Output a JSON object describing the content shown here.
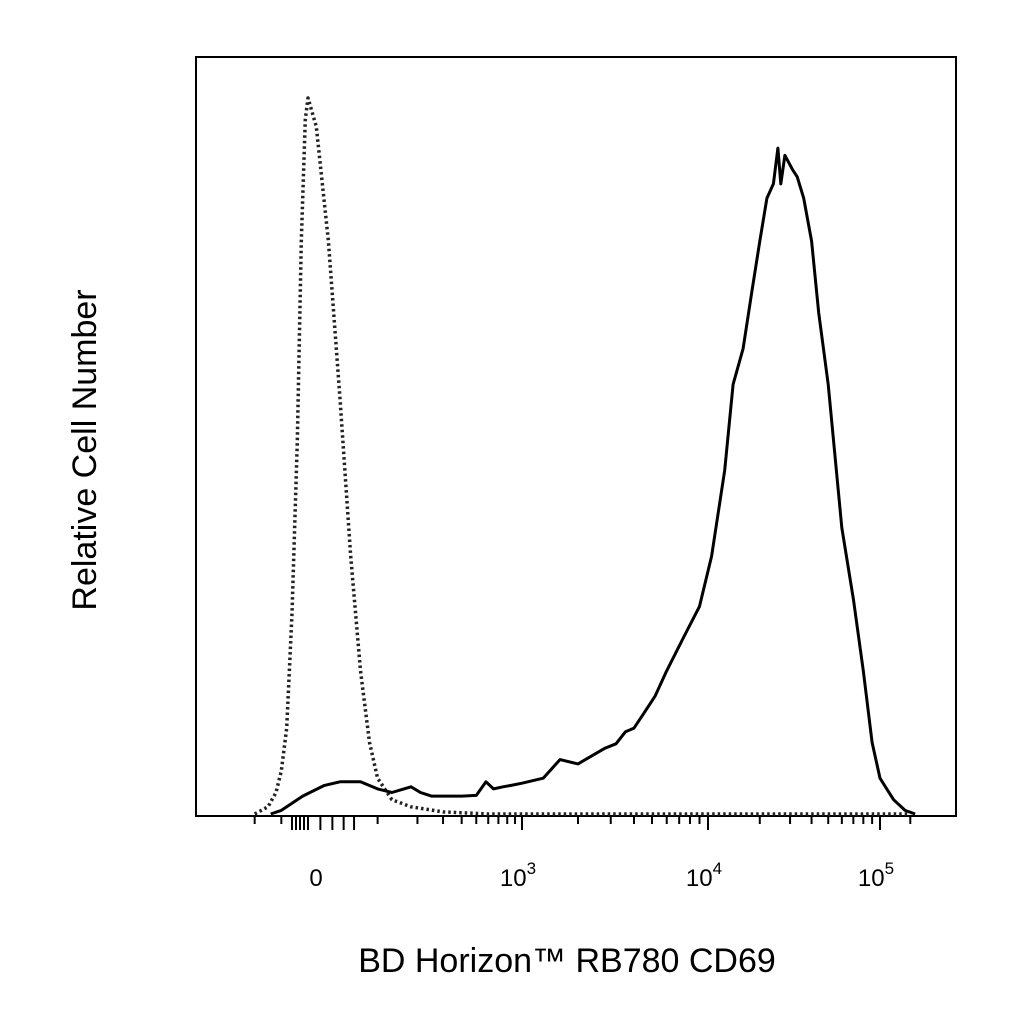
{
  "chart_data": {
    "type": "line",
    "xlabel": "BD Horizon™ RB780  CD69",
    "ylabel": "Relative Cell Number",
    "x_scale": "biexponential",
    "xlim": [
      -300,
      200000
    ],
    "ylim": [
      0,
      100
    ],
    "grid": false,
    "legend": "none",
    "x_tick_labels": [
      {
        "value": 0,
        "label": "0",
        "sup": ""
      },
      {
        "value": 1000,
        "label": "10",
        "sup": "3"
      },
      {
        "value": 10000,
        "label": "10",
        "sup": "4"
      },
      {
        "value": 100000,
        "label": "10",
        "sup": "5"
      }
    ],
    "series": [
      {
        "style": "dotted",
        "color": "#222222",
        "points": [
          [
            -200,
            0
          ],
          [
            -150,
            1
          ],
          [
            -120,
            3
          ],
          [
            -100,
            6
          ],
          [
            -80,
            12
          ],
          [
            -60,
            28
          ],
          [
            -40,
            52
          ],
          [
            -25,
            80
          ],
          [
            -10,
            97
          ],
          [
            0,
            100
          ],
          [
            10,
            96
          ],
          [
            25,
            80
          ],
          [
            40,
            58
          ],
          [
            55,
            36
          ],
          [
            70,
            20
          ],
          [
            85,
            10
          ],
          [
            100,
            5
          ],
          [
            130,
            2
          ],
          [
            180,
            1
          ],
          [
            300,
            0.3
          ],
          [
            600,
            0
          ],
          [
            1000,
            0
          ],
          [
            10000,
            0
          ],
          [
            100000,
            0
          ],
          [
            150000,
            0
          ]
        ]
      },
      {
        "style": "solid",
        "color": "#000000",
        "points": [
          [
            -140,
            0
          ],
          [
            -100,
            0.5
          ],
          [
            -60,
            1.5
          ],
          [
            -20,
            2.5
          ],
          [
            20,
            4
          ],
          [
            40,
            4.5
          ],
          [
            70,
            4.5
          ],
          [
            100,
            3.5
          ],
          [
            130,
            3
          ],
          [
            160,
            3.5
          ],
          [
            180,
            3.8
          ],
          [
            210,
            3
          ],
          [
            250,
            2.5
          ],
          [
            300,
            2.5
          ],
          [
            400,
            2.5
          ],
          [
            500,
            2.6
          ],
          [
            580,
            4.5
          ],
          [
            650,
            3.5
          ],
          [
            750,
            3.8
          ],
          [
            850,
            4
          ],
          [
            1000,
            4.3
          ],
          [
            1300,
            5
          ],
          [
            1600,
            7.6
          ],
          [
            2000,
            7
          ],
          [
            2400,
            8.2
          ],
          [
            2800,
            9.2
          ],
          [
            3200,
            9.8
          ],
          [
            3600,
            11.5
          ],
          [
            4000,
            12
          ],
          [
            4500,
            14
          ],
          [
            5200,
            16.5
          ],
          [
            6000,
            20
          ],
          [
            7500,
            25
          ],
          [
            9000,
            29
          ],
          [
            10500,
            36
          ],
          [
            12500,
            48
          ],
          [
            14000,
            60
          ],
          [
            16000,
            65
          ],
          [
            18000,
            73
          ],
          [
            20000,
            80
          ],
          [
            22000,
            86
          ],
          [
            24000,
            88
          ],
          [
            25500,
            93
          ],
          [
            26500,
            88
          ],
          [
            28000,
            92
          ],
          [
            31000,
            90
          ],
          [
            33000,
            89
          ],
          [
            36000,
            86
          ],
          [
            40000,
            80
          ],
          [
            44000,
            70
          ],
          [
            50000,
            60
          ],
          [
            60000,
            40
          ],
          [
            70000,
            30
          ],
          [
            80000,
            20
          ],
          [
            90000,
            10
          ],
          [
            100000,
            5
          ],
          [
            120000,
            2
          ],
          [
            140000,
            0.5
          ],
          [
            160000,
            0
          ]
        ]
      }
    ]
  }
}
